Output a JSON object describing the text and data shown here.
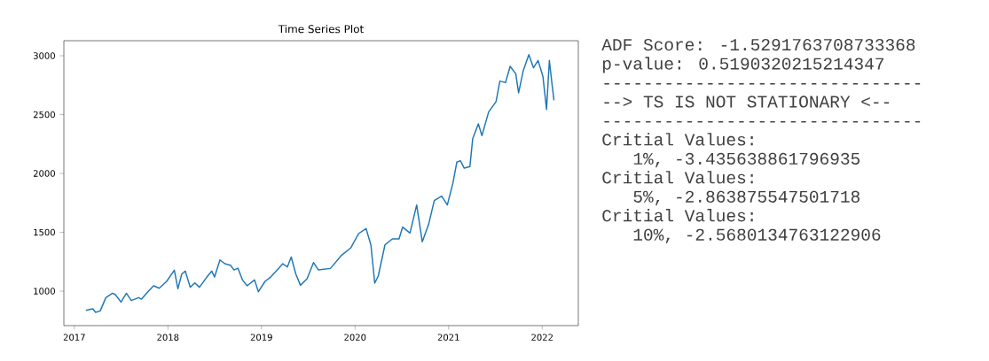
{
  "chart_data": {
    "type": "line",
    "title": "Time Series Plot",
    "x": [
      "2017-02-15",
      "2017-03-14",
      "2017-03-25",
      "2017-04-12",
      "2017-05-04",
      "2017-05-30",
      "2017-06-10",
      "2017-07-02",
      "2017-07-23",
      "2017-08-11",
      "2017-09-09",
      "2017-09-20",
      "2017-10-15",
      "2017-11-06",
      "2017-11-28",
      "2017-12-27",
      "2018-01-26",
      "2018-02-09",
      "2018-02-24",
      "2018-03-10",
      "2018-03-29",
      "2018-04-16",
      "2018-05-04",
      "2018-06-02",
      "2018-06-21",
      "2018-07-02",
      "2018-07-23",
      "2018-08-11",
      "2018-09-02",
      "2018-09-16",
      "2018-10-01",
      "2018-10-19",
      "2018-11-06",
      "2018-12-05",
      "2018-12-20",
      "2019-01-15",
      "2019-02-06",
      "2019-02-27",
      "2019-03-25",
      "2019-04-12",
      "2019-04-27",
      "2019-05-15",
      "2019-06-02",
      "2019-06-28",
      "2019-07-23",
      "2019-08-11",
      "2019-09-27",
      "2019-11-10",
      "2019-12-16",
      "2020-01-15",
      "2020-02-13",
      "2020-03-03",
      "2020-03-18",
      "2020-04-01",
      "2020-04-27",
      "2020-05-26",
      "2020-06-21",
      "2020-07-05",
      "2020-08-03",
      "2020-08-29",
      "2020-09-20",
      "2020-10-15",
      "2020-11-06",
      "2020-12-05",
      "2020-12-27",
      "2021-01-18",
      "2021-02-02",
      "2021-02-16",
      "2021-03-03",
      "2021-03-25",
      "2021-04-05",
      "2021-04-27",
      "2021-05-11",
      "2021-06-06",
      "2021-07-05",
      "2021-07-20",
      "2021-08-11",
      "2021-08-29",
      "2021-09-20",
      "2021-10-01",
      "2021-10-19",
      "2021-11-10",
      "2021-11-28",
      "2021-12-16",
      "2022-01-04",
      "2022-01-18",
      "2022-01-29",
      "2022-02-09",
      "2022-02-16"
    ],
    "series": [
      {
        "color": "#1f77b4",
        "values": [
          837,
          850,
          820,
          832,
          945,
          982,
          970,
          907,
          982,
          920,
          945,
          932,
          995,
          1045,
          1025,
          1083,
          1178,
          1020,
          1145,
          1170,
          1033,
          1070,
          1033,
          1120,
          1170,
          1120,
          1265,
          1233,
          1220,
          1180,
          1195,
          1095,
          1045,
          1095,
          995,
          1083,
          1120,
          1170,
          1233,
          1205,
          1290,
          1145,
          1050,
          1105,
          1243,
          1180,
          1193,
          1306,
          1369,
          1489,
          1532,
          1393,
          1068,
          1130,
          1393,
          1444,
          1444,
          1544,
          1494,
          1732,
          1419,
          1569,
          1770,
          1807,
          1732,
          1920,
          2096,
          2108,
          2045,
          2058,
          2296,
          2421,
          2321,
          2522,
          2610,
          2785,
          2772,
          2910,
          2847,
          2685,
          2872,
          3010,
          2898,
          2960,
          2823,
          2544,
          2960,
          2747,
          2622
        ]
      }
    ],
    "xlim": [
      "2016-11-21",
      "2022-05-22"
    ],
    "xticks": [
      "2017",
      "2018",
      "2019",
      "2020",
      "2021",
      "2022"
    ],
    "ylim": [
      707,
      3128
    ],
    "yticks": [
      1000,
      1500,
      2000,
      2500,
      3000
    ],
    "annotations": [
      "ADF Score: -1.5291763708733368",
      "p-value: 0.5190320215214347",
      "-------------------------------",
      "--> TS IS NOT STATIONARY <--",
      "-------------------------------",
      "Critial Values:",
      "   1%, -3.435638861796935",
      "Critial Values:",
      "   5%, -2.863875547501718",
      "Critial Values:",
      "   10%, -2.5680134763122906"
    ]
  }
}
